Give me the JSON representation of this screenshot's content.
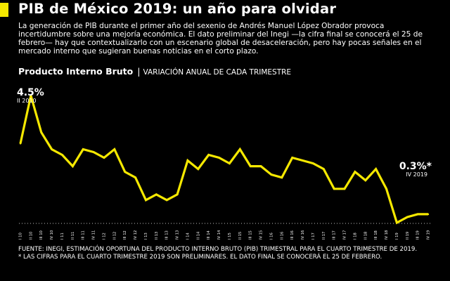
{
  "header": {
    "title": "PIB de México 2019: un año para olvidar",
    "accent_color": "#f5e800",
    "intro": "La generación de PIB durante el primer año del sexenio de Andrés Manuel López Obrador provoca incertidumbre sobre una mejoría económica. El dato preliminar del Inegi —la cifra final se conocerá el 25 de febrero— hay que contextualizarlo con un escenario global de desaceleración, pero hay pocas señales en el mercado interno que sugieran buenas noticias en el corto plazo."
  },
  "subhead": {
    "strong": "Producto Interno Bruto",
    "separator": "|",
    "light": "VARIACIÓN ANUAL DE CADA TRIMESTRE"
  },
  "chart_data": {
    "type": "line",
    "line_color": "#f5e800",
    "grid": false,
    "categories": [
      "I 10",
      "II 10",
      "III 10",
      "IV 10",
      "I 11",
      "II 11",
      "III 11",
      "IV 11",
      "I 12",
      "II 12",
      "III 12",
      "IV 12",
      "I 13",
      "II 13",
      "III 13",
      "IV 13",
      "I 14",
      "II 14",
      "III 14",
      "IV 14",
      "I 15",
      "II 15",
      "III 15",
      "IV 15",
      "I 16",
      "II 16",
      "III 16",
      "IV 16",
      "I 17",
      "II 17",
      "III 17",
      "IV 17",
      "I 18",
      "II 18",
      "III 18",
      "IV 18",
      "I 19",
      "II 19",
      "III 19",
      "IV 19"
    ],
    "values": [
      2.8,
      4.5,
      3.2,
      2.6,
      2.4,
      2.0,
      2.6,
      2.5,
      2.3,
      2.6,
      1.8,
      1.6,
      0.8,
      1.0,
      0.8,
      1.0,
      2.2,
      1.9,
      2.4,
      2.3,
      2.1,
      2.6,
      2.0,
      2.0,
      1.7,
      1.6,
      2.3,
      2.2,
      2.1,
      1.9,
      1.2,
      1.2,
      1.8,
      1.5,
      1.9,
      1.2,
      0.0,
      0.2,
      0.3,
      0.3
    ],
    "ylim": [
      0,
      4.8
    ],
    "annotations": [
      {
        "value": "4.5%",
        "period": "II 2010"
      },
      {
        "value": "0.3%*",
        "period": "IV 2019"
      }
    ]
  },
  "footer": {
    "source": "FUENTE: INEGI, ESTIMACIÓN OPORTUNA DEL PRODUCTO INTERNO BRUTO (PIB) TRIMESTRAL PARA EL CUARTO TRIMESTRE DE 2019.",
    "note": "* LAS CIFRAS PARA EL CUARTO TRIMESTRE 2019 SON PRELIMINARES. EL DATO FINAL SE CONOCERÁ EL 25 DE FEBRERO."
  }
}
